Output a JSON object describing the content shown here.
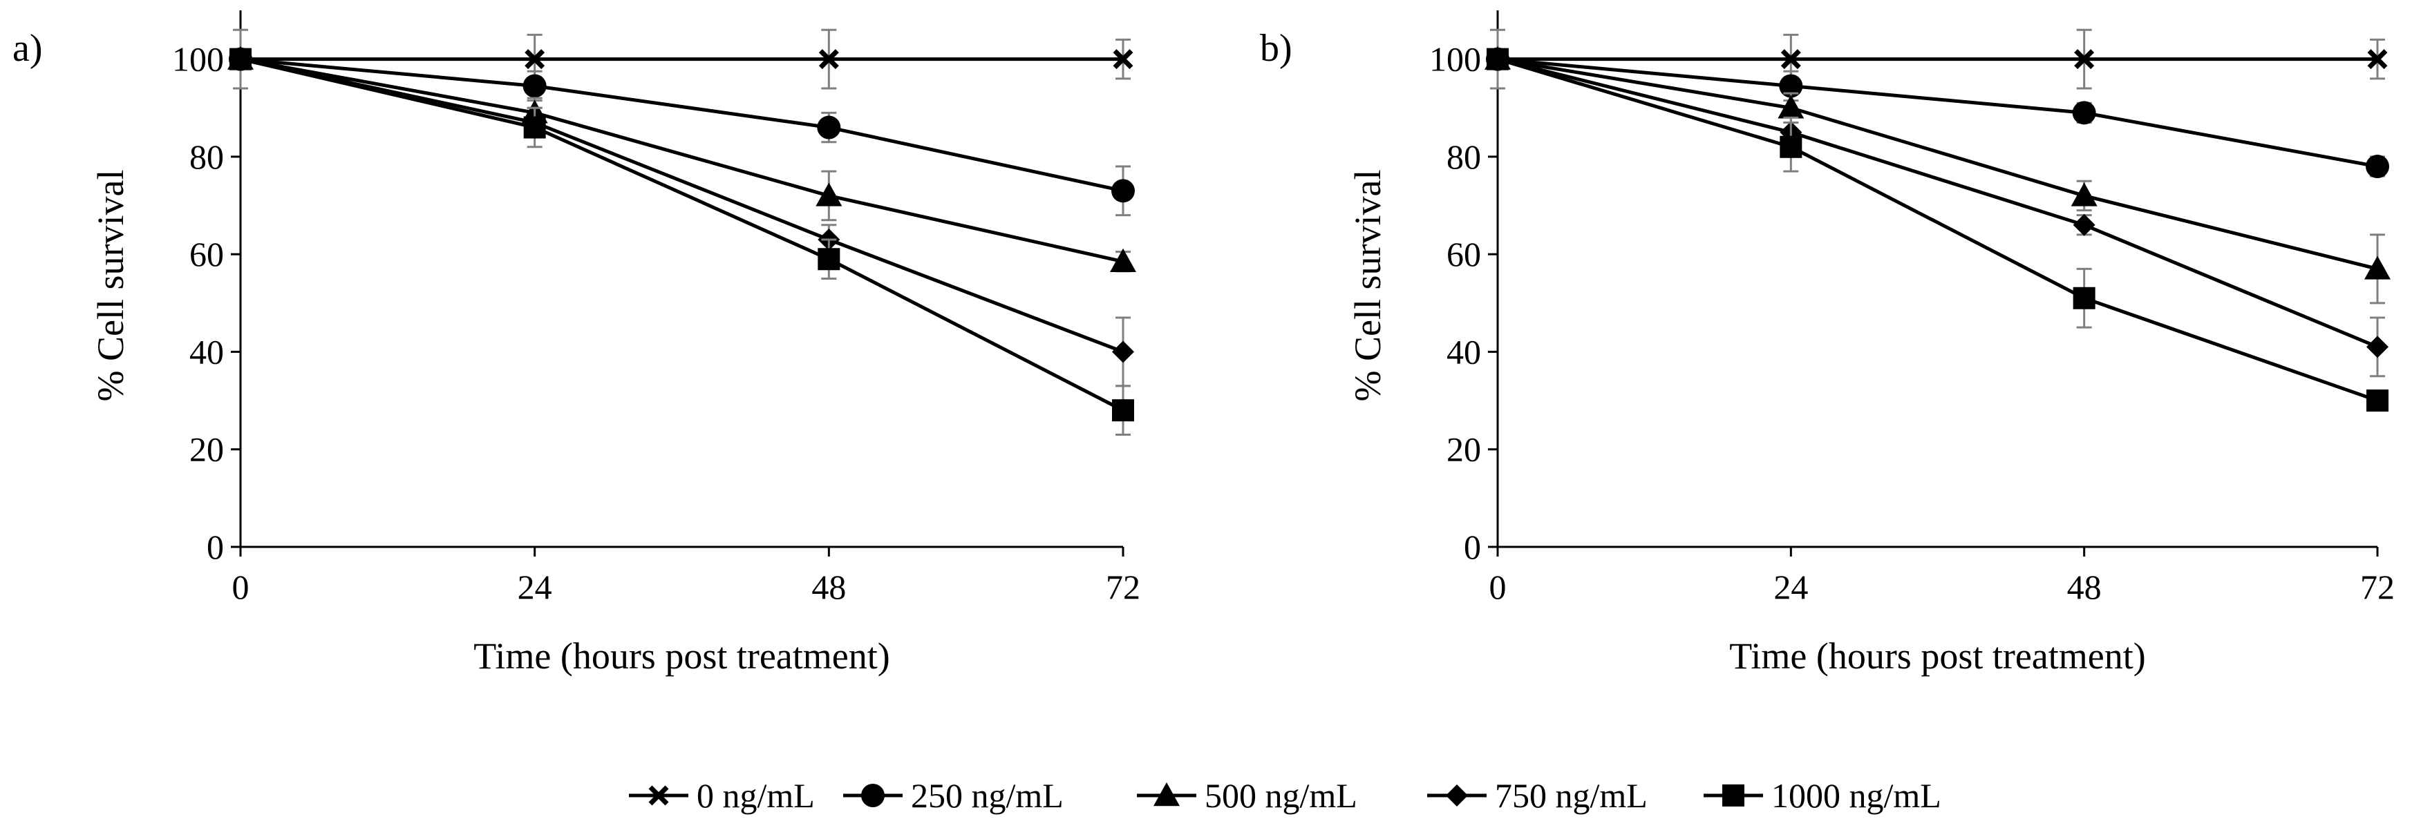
{
  "chart_data": [
    {
      "type": "line",
      "panel_label": "a)",
      "xlabel": "Time  (hours post treatment)",
      "ylabel": "% Cell survival",
      "x": [
        0,
        24,
        48,
        72
      ],
      "xticks": [
        0,
        24,
        48,
        72
      ],
      "yticks": [
        0,
        20,
        40,
        60,
        80,
        100
      ],
      "xlim": [
        0,
        72
      ],
      "ylim": [
        0,
        110
      ],
      "grid": false,
      "series": [
        {
          "name": "0 ng/mL",
          "marker": "x",
          "values": [
            100,
            100,
            100,
            100
          ],
          "errors": [
            6,
            5,
            6,
            4
          ]
        },
        {
          "name": "250 ng/mL",
          "marker": "circle",
          "values": [
            100,
            94.5,
            86,
            73
          ],
          "errors": [
            0,
            3,
            3,
            5
          ]
        },
        {
          "name": "500 ng/mL",
          "marker": "triangle",
          "values": [
            100,
            89,
            72,
            58.5
          ],
          "errors": [
            0,
            3,
            5,
            2
          ]
        },
        {
          "name": "750 ng/mL",
          "marker": "diamond",
          "values": [
            100,
            87,
            63,
            40
          ],
          "errors": [
            0,
            3,
            3,
            7
          ]
        },
        {
          "name": "1000 ng/mL",
          "marker": "square",
          "values": [
            100,
            86,
            59,
            28
          ],
          "errors": [
            0,
            4,
            4,
            5
          ]
        }
      ]
    },
    {
      "type": "line",
      "panel_label": "b)",
      "xlabel": "Time  (hours post treatment)",
      "ylabel": "% Cell survival",
      "x": [
        0,
        24,
        48,
        72
      ],
      "xticks": [
        0,
        24,
        48,
        72
      ],
      "yticks": [
        0,
        20,
        40,
        60,
        80,
        100
      ],
      "xlim": [
        0,
        72
      ],
      "ylim": [
        0,
        110
      ],
      "grid": false,
      "series": [
        {
          "name": "0 ng/mL",
          "marker": "x",
          "values": [
            100,
            100,
            100,
            100
          ],
          "errors": [
            6,
            5,
            6,
            4
          ]
        },
        {
          "name": "250 ng/mL",
          "marker": "circle",
          "values": [
            100,
            94.5,
            89,
            78
          ],
          "errors": [
            0,
            3,
            2,
            2
          ]
        },
        {
          "name": "500 ng/mL",
          "marker": "triangle",
          "values": [
            100,
            90,
            72,
            57
          ],
          "errors": [
            0,
            3,
            3,
            7
          ]
        },
        {
          "name": "750 ng/mL",
          "marker": "diamond",
          "values": [
            100,
            85,
            66,
            41
          ],
          "errors": [
            0,
            3,
            2,
            6
          ]
        },
        {
          "name": "1000 ng/mL",
          "marker": "square",
          "values": [
            100,
            82,
            51,
            30
          ],
          "errors": [
            0,
            5,
            6,
            2
          ]
        }
      ]
    }
  ],
  "legend": {
    "placement": "bottom-center",
    "items": [
      {
        "label": "0 ng/mL",
        "marker": "x"
      },
      {
        "label": "250 ng/mL",
        "marker": "circle"
      },
      {
        "label": "500 ng/mL",
        "marker": "triangle"
      },
      {
        "label": "750 ng/mL",
        "marker": "diamond"
      },
      {
        "label": "1000 ng/mL",
        "marker": "square"
      }
    ]
  },
  "colors": {
    "line": "#000000",
    "error_bar": "#7f7f7f",
    "background": "#ffffff"
  }
}
